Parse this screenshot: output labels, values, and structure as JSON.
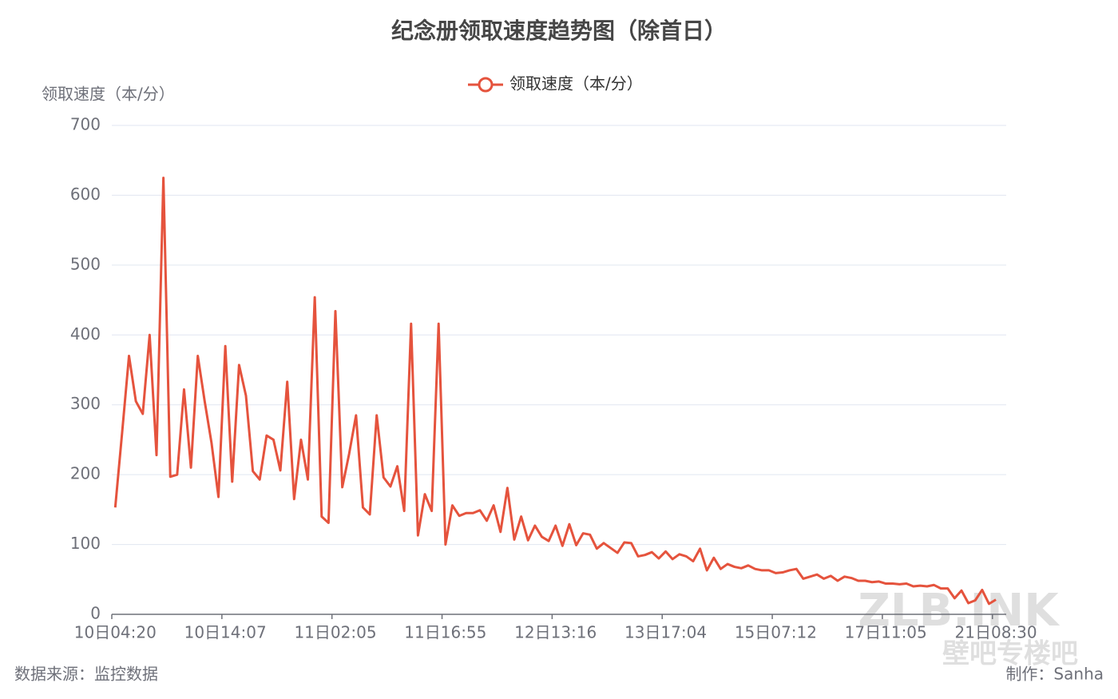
{
  "chart_data": {
    "type": "line",
    "title": "纪念册领取速度趋势图（除首日）",
    "y_label": "领取速度（本/分）",
    "source": "数据来源：监控数据",
    "author": "制作：Sanha",
    "watermark": [
      "ZLB.INK",
      "壁吧专楼吧"
    ],
    "categories": [
      "10日04:20",
      null,
      null,
      null,
      null,
      null,
      null,
      null,
      null,
      null,
      null,
      null,
      null,
      null,
      null,
      null,
      "10日14:07",
      null,
      null,
      null,
      null,
      null,
      null,
      null,
      null,
      null,
      null,
      null,
      null,
      null,
      null,
      null,
      "11日02:05",
      null,
      null,
      null,
      null,
      null,
      null,
      null,
      null,
      null,
      null,
      null,
      null,
      null,
      null,
      null,
      "11日16:55",
      null,
      null,
      null,
      null,
      null,
      null,
      null,
      null,
      null,
      null,
      null,
      null,
      null,
      null,
      null,
      "12日13:16",
      null,
      null,
      null,
      null,
      null,
      null,
      null,
      null,
      null,
      null,
      null,
      null,
      null,
      null,
      null,
      "13日17:04",
      null,
      null,
      null,
      null,
      null,
      null,
      null,
      null,
      null,
      null,
      null,
      null,
      null,
      null,
      null,
      "15日07:12",
      null,
      null,
      null,
      null,
      null,
      null,
      null,
      null,
      null,
      null,
      null,
      null,
      null,
      null,
      null,
      "17日11:05",
      null,
      null,
      null,
      null,
      null,
      null,
      null,
      null,
      null,
      null,
      null,
      null,
      null,
      null,
      null,
      "21日08:30"
    ],
    "series": [
      {
        "name": "领取速度（本/分）",
        "color": "#e5533d",
        "values": [
          153,
          260,
          370,
          305,
          287,
          400,
          228,
          625,
          197,
          200,
          322,
          210,
          370,
          305,
          245,
          168,
          384,
          190,
          357,
          313,
          205,
          193,
          256,
          250,
          206,
          333,
          165,
          250,
          193,
          454,
          140,
          131,
          434,
          182,
          230,
          285,
          153,
          143,
          285,
          196,
          183,
          212,
          148,
          416,
          113,
          172,
          148,
          416,
          100,
          156,
          141,
          145,
          145,
          149,
          134,
          156,
          118,
          181,
          107,
          140,
          106,
          127,
          111,
          105,
          127,
          98,
          129,
          99,
          116,
          114,
          94,
          102,
          95,
          88,
          103,
          102,
          83,
          85,
          89,
          80,
          90,
          79,
          86,
          83,
          76,
          94,
          63,
          81,
          65,
          72,
          68,
          66,
          70,
          65,
          63,
          63,
          59,
          60,
          63,
          65,
          51,
          54,
          57,
          51,
          55,
          48,
          54,
          52,
          48,
          48,
          46,
          47,
          44,
          44,
          43,
          44,
          40,
          41,
          40,
          42,
          37,
          37,
          23,
          34,
          16,
          20,
          35,
          15,
          21
        ]
      }
    ],
    "ylim": [
      0,
      700
    ],
    "yticks": [
      0,
      100,
      200,
      300,
      400,
      500,
      600,
      700
    ],
    "grid": true
  }
}
